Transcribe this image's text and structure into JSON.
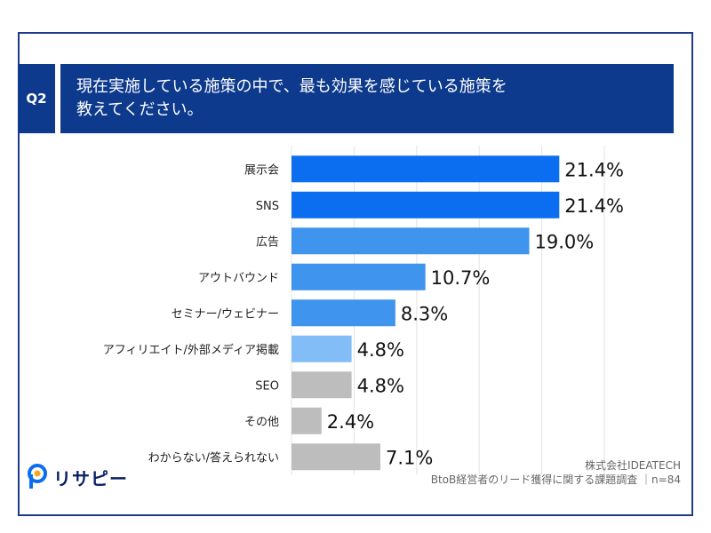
{
  "question": {
    "badge": "Q2",
    "line1": "現在実施している施策の中で、最も効果を感じている施策を",
    "line2": "教えてください。"
  },
  "colors": {
    "navy": "#0d3a8c",
    "blue_dark": "#0b6ef0",
    "blue_mid": "#3f94ee",
    "blue_light": "#82bdf7",
    "gray": "#bdbdbd"
  },
  "chart_data": {
    "type": "bar",
    "orientation": "horizontal",
    "categories": [
      "展示会",
      "SNS",
      "広告",
      "アウトバウンド",
      "セミナー/ウェビナー",
      "アフィリエイト/外部メディア掲載",
      "SEO",
      "その他",
      "わからない/答えられない"
    ],
    "values": [
      21.4,
      21.4,
      19.0,
      10.7,
      8.3,
      4.8,
      4.8,
      2.4,
      7.1
    ],
    "value_labels": [
      "21.4%",
      "21.4%",
      "19.0%",
      "10.7%",
      "8.3%",
      "4.8%",
      "4.8%",
      "2.4%",
      "7.1%"
    ],
    "bar_colors": [
      "#0b6ef0",
      "#0b6ef0",
      "#3f94ee",
      "#3f94ee",
      "#3f94ee",
      "#82bdf7",
      "#bdbdbd",
      "#bdbdbd",
      "#bdbdbd"
    ],
    "xlim": [
      0,
      25
    ],
    "grid": true,
    "title": "",
    "xlabel": "",
    "ylabel": ""
  },
  "logo": {
    "text": "リサピー"
  },
  "source": {
    "company": "株式会社IDEATECH",
    "survey": "BtoB経営者のリード獲得に関する課題調査 ｜n=84"
  }
}
